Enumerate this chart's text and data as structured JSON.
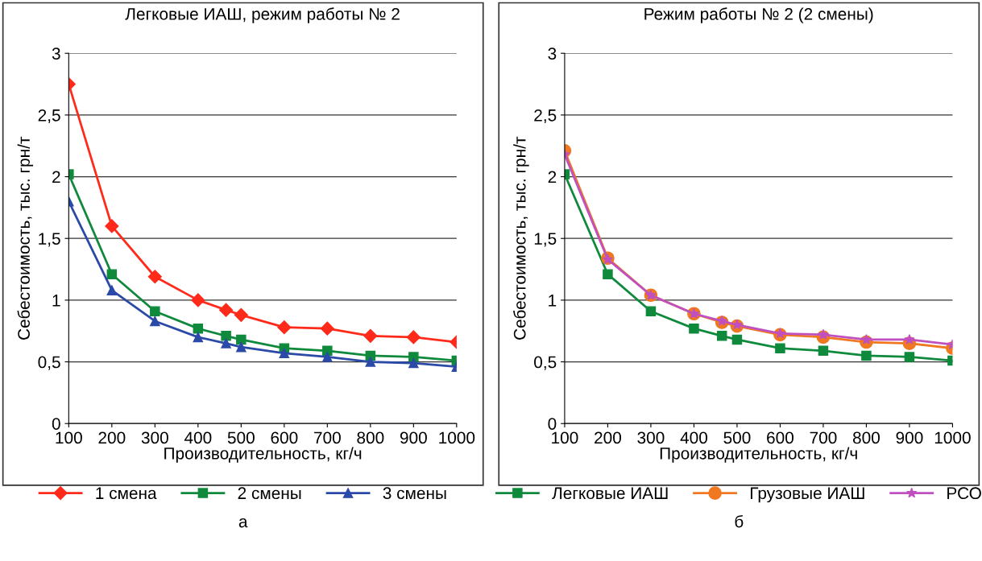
{
  "chart_data": [
    {
      "type": "line",
      "title": "Легковые ИАШ, режим работы № 2",
      "xlabel": "Производительность, кг/ч",
      "ylabel": "Себестоимость, тыс. грн/т",
      "x": [
        100,
        200,
        300,
        400,
        465,
        500,
        600,
        700,
        800,
        900,
        1000
      ],
      "series": [
        {
          "name": "1 смена",
          "color": "#ff2a1a",
          "marker": "diamond",
          "values": [
            2.75,
            1.6,
            1.19,
            1.0,
            0.92,
            0.88,
            0.78,
            0.77,
            0.71,
            0.7,
            0.66
          ]
        },
        {
          "name": "2 смены",
          "color": "#0f8a3c",
          "marker": "square",
          "values": [
            2.02,
            1.21,
            0.91,
            0.77,
            0.71,
            0.68,
            0.61,
            0.59,
            0.55,
            0.54,
            0.51
          ]
        },
        {
          "name": "3 смены",
          "color": "#2b4aa8",
          "marker": "triangle",
          "values": [
            1.8,
            1.08,
            0.83,
            0.7,
            0.65,
            0.62,
            0.57,
            0.54,
            0.5,
            0.49,
            0.46
          ]
        }
      ],
      "xlim": [
        100,
        1000
      ],
      "xticks": [
        100,
        200,
        300,
        400,
        500,
        600,
        700,
        800,
        900,
        1000
      ],
      "ylim": [
        0,
        3
      ],
      "yticks": [
        0,
        {
          "value": 0.5,
          "label": "0,5"
        },
        1,
        {
          "value": 1.5,
          "label": "1,5"
        },
        2,
        {
          "value": 2.5,
          "label": "2,5"
        },
        3
      ],
      "grid": "y",
      "legend": "bottom",
      "annotations": [
        "а"
      ]
    },
    {
      "type": "line",
      "title": "Режим работы № 2 (2 смены)",
      "xlabel": "Производительность, кг/ч",
      "ylabel": "Себестоимость, тыс. грн/т",
      "x": [
        100,
        200,
        300,
        400,
        465,
        500,
        600,
        700,
        800,
        900,
        1000
      ],
      "series": [
        {
          "name": "Легковые ИАШ",
          "color": "#0f8a3c",
          "marker": "square",
          "values": [
            2.02,
            1.21,
            0.91,
            0.77,
            0.71,
            0.68,
            0.61,
            0.59,
            0.55,
            0.54,
            0.51
          ]
        },
        {
          "name": "Грузовые ИАШ",
          "color": "#f07820",
          "marker": "circle",
          "values": [
            2.21,
            1.34,
            1.04,
            0.89,
            0.82,
            0.79,
            0.72,
            0.7,
            0.66,
            0.65,
            0.61
          ]
        },
        {
          "name": "РСО",
          "color": "#c050c0",
          "marker": "star",
          "values": [
            2.18,
            1.33,
            1.04,
            0.89,
            0.83,
            0.8,
            0.73,
            0.72,
            0.68,
            0.68,
            0.64
          ]
        }
      ],
      "xlim": [
        100,
        1000
      ],
      "xticks": [
        100,
        200,
        300,
        400,
        500,
        600,
        700,
        800,
        900,
        1000
      ],
      "ylim": [
        0,
        3
      ],
      "yticks": [
        0,
        {
          "value": 0.5,
          "label": "0,5"
        },
        1,
        {
          "value": 1.5,
          "label": "1,5"
        },
        2,
        {
          "value": 2.5,
          "label": "2,5"
        },
        3
      ],
      "grid": "y",
      "legend": "bottom",
      "annotations": [
        "б"
      ]
    }
  ]
}
